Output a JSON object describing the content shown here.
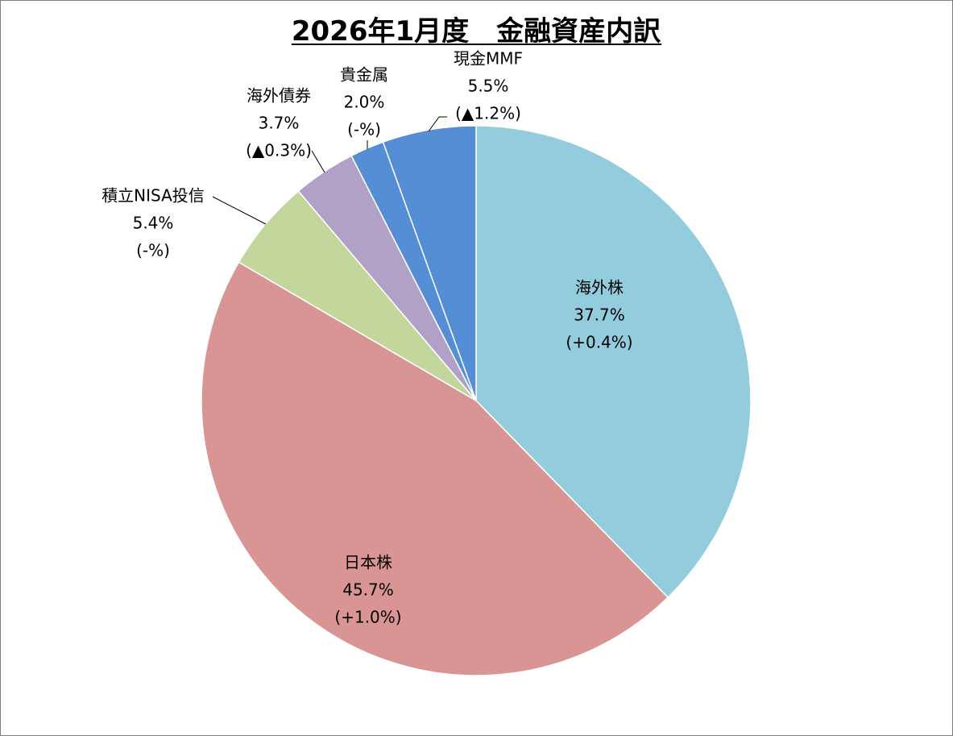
{
  "chart_data": {
    "type": "pie",
    "title": "2026年1月度　金融資産内訳",
    "start_angle_deg": 0,
    "direction": "clockwise",
    "legend": "none",
    "slices": [
      {
        "name": "海外株",
        "value": 37.7,
        "value_label": "37.7%",
        "change": "(+0.4%)",
        "color": "#93CDDD"
      },
      {
        "name": "日本株",
        "value": 45.7,
        "value_label": "45.7%",
        "change": "(+1.0%)",
        "color": "#D99594"
      },
      {
        "name": "積立NISA投信",
        "value": 5.4,
        "value_label": "5.4%",
        "change": "(-%)",
        "color": "#C3D69B"
      },
      {
        "name": "海外債券",
        "value": 3.7,
        "value_label": "3.7%",
        "change": "(▲0.3%)",
        "color": "#B2A1C7"
      },
      {
        "name": "貴金属",
        "value": 2.0,
        "value_label": "2.0%",
        "change": "(-%)",
        "color": "#558ED5"
      },
      {
        "name": "現金MMF",
        "value": 5.5,
        "value_label": "5.5%",
        "change": "(▲1.2%)",
        "color": "#558ED5"
      }
    ]
  }
}
